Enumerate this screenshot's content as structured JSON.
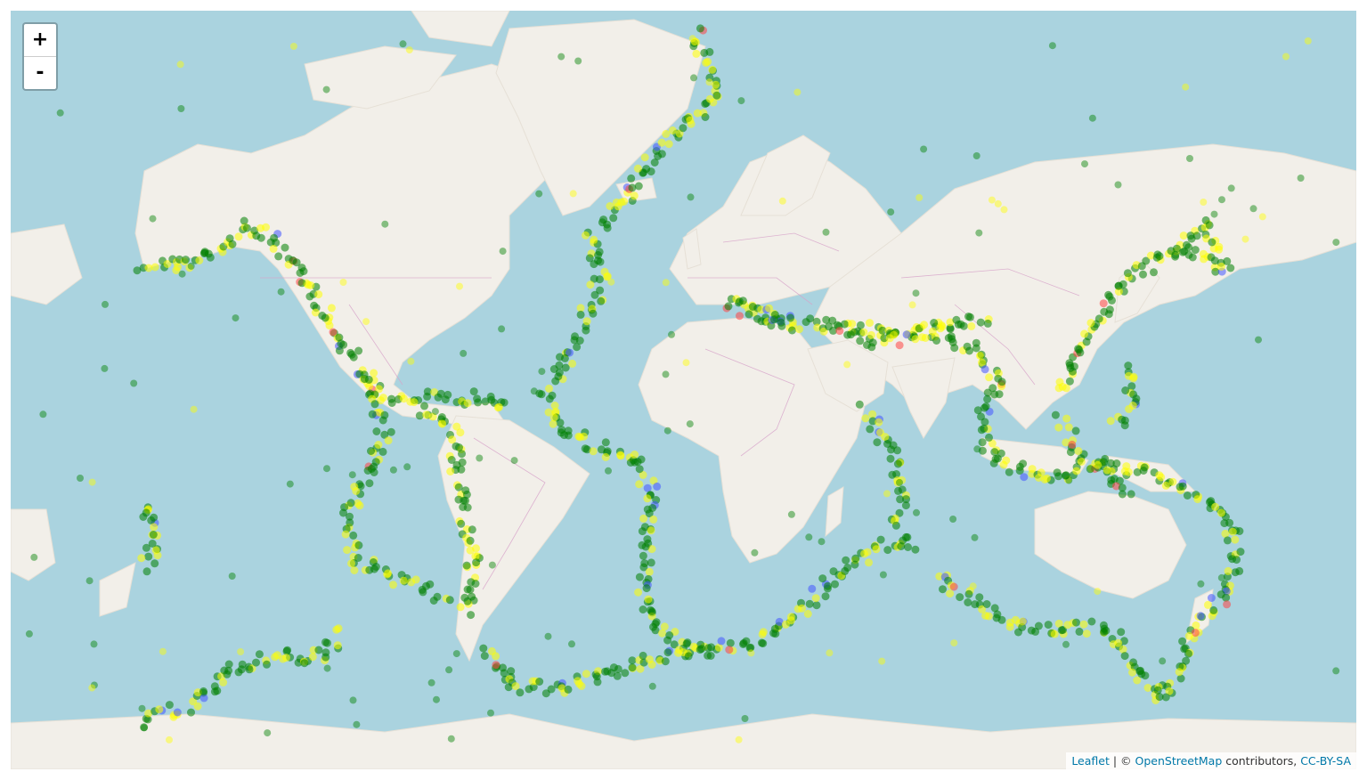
{
  "map": {
    "zoom_in_label": "+",
    "zoom_out_label": "-",
    "colors": {
      "water": "#aad3df",
      "land": "#f2efe9",
      "border": "#d7a3c9",
      "marker_green": "#008000",
      "marker_yellow": "#ffff00",
      "marker_blue": "#4455ff",
      "marker_red": "#ff4444"
    },
    "attribution": {
      "leaflet": "Leaflet",
      "separator": " | © ",
      "osm": "OpenStreetMap",
      "contributors": " contributors, ",
      "license": "CC-BY-SA"
    }
  }
}
